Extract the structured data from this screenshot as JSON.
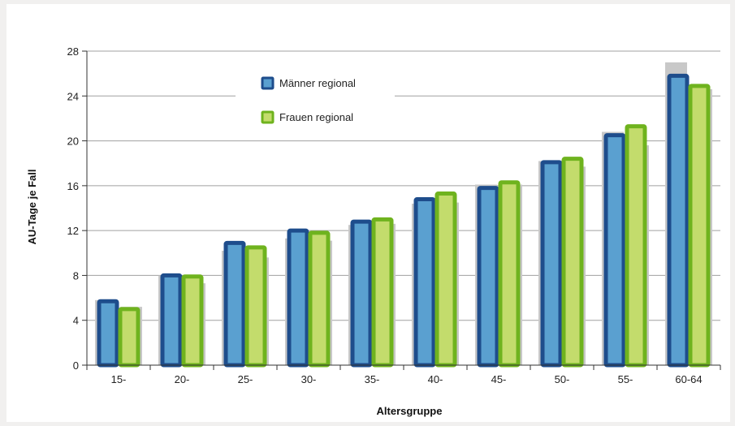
{
  "chart_data": {
    "type": "bar",
    "title": "",
    "xlabel": "Altersgruppe",
    "ylabel": "AU-Tage je Fall",
    "ylim": [
      0,
      28
    ],
    "yticks": [
      0,
      4,
      8,
      12,
      16,
      20,
      24,
      28
    ],
    "grid": true,
    "legend_position": "top-left",
    "categories": [
      "15-",
      "20-",
      "25-",
      "30-",
      "35-",
      "40-",
      "45-",
      "50-",
      "55-",
      "60-64"
    ],
    "series": [
      {
        "name": "Männer regional",
        "values": [
          5.7,
          8.0,
          10.9,
          12.0,
          12.8,
          14.8,
          15.8,
          18.1,
          20.5,
          25.8
        ],
        "fill": "#5aa0d0",
        "stroke": "#1e4d8c"
      },
      {
        "name": "Frauen regional",
        "values": [
          5.0,
          7.9,
          10.5,
          11.8,
          13.0,
          15.3,
          16.3,
          18.4,
          21.3,
          24.9
        ],
        "fill": "#c3dc6c",
        "stroke": "#6fb31e"
      },
      {
        "name": "",
        "role": "background-reference-male",
        "values": [
          5.8,
          8.0,
          10.2,
          11.3,
          12.5,
          14.4,
          16.1,
          18.2,
          20.8,
          27.0
        ],
        "fill": "#c8c8c8"
      },
      {
        "name": "",
        "role": "background-reference-female",
        "values": [
          5.2,
          7.3,
          9.6,
          11.1,
          12.6,
          14.5,
          16.1,
          17.7,
          19.6,
          24.6
        ],
        "fill": "#c8c8c8"
      }
    ]
  },
  "colors": {
    "background": "#f1f0ef",
    "plot_background": "#ffffff",
    "grid": "#a0a0a0",
    "axis": "#333333"
  }
}
